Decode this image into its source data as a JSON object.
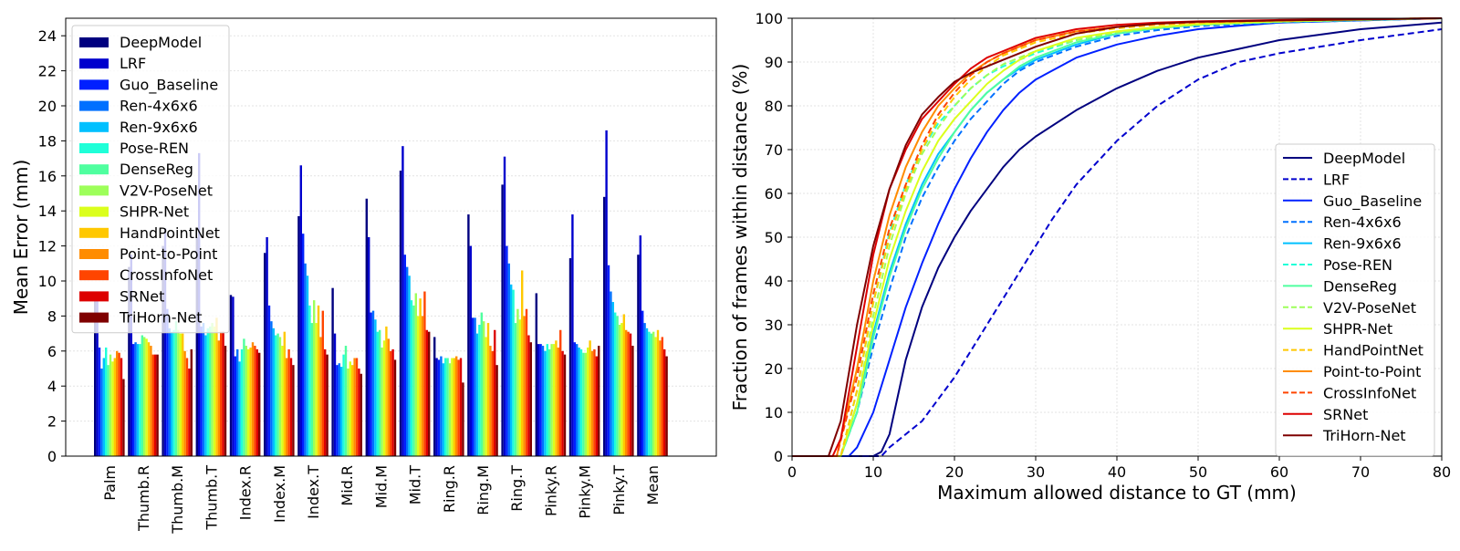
{
  "chart_data": [
    {
      "type": "bar",
      "ylabel": "Mean Error (mm)",
      "xlabel": "",
      "ylim": [
        0,
        25
      ],
      "yticks": [
        0,
        2,
        4,
        6,
        8,
        10,
        12,
        14,
        16,
        18,
        20,
        22,
        24
      ],
      "ytick_labels": [
        "0",
        "2",
        "4",
        "6",
        "8",
        "10",
        "12",
        "14",
        "16",
        "18",
        "20",
        "22",
        "24"
      ],
      "grid": true,
      "legend_position": "top-left",
      "categories": [
        "Palm",
        "Thumb.R",
        "Thumb.M",
        "Thumb.T",
        "Index.R",
        "Index.M",
        "Index.T",
        "Mid.R",
        "Mid.M",
        "Mid.T",
        "Ring.R",
        "Ring.M",
        "Ring.T",
        "Pinky.R",
        "Pinky.M",
        "Pinky.T",
        "Mean"
      ],
      "series": [
        {
          "name": "DeepModel",
          "color": "#00007f",
          "values": [
            9.0,
            10.8,
            12.0,
            12.5,
            9.2,
            11.6,
            13.7,
            9.6,
            14.7,
            16.3,
            6.8,
            13.8,
            15.5,
            9.3,
            11.3,
            14.8,
            11.5
          ]
        },
        {
          "name": "LRF",
          "color": "#0000cd",
          "values": [
            9.0,
            11.5,
            13.0,
            17.3,
            9.1,
            12.5,
            16.6,
            7.0,
            12.5,
            17.7,
            5.6,
            12.0,
            17.1,
            6.4,
            13.8,
            18.6,
            12.6
          ]
        },
        {
          "name": "Guo_Baseline",
          "color": "#0020ff",
          "values": [
            6.2,
            6.4,
            8.4,
            7.4,
            5.7,
            8.6,
            12.7,
            5.2,
            8.2,
            11.5,
            5.5,
            7.9,
            12.0,
            6.4,
            6.5,
            10.9,
            8.3
          ]
        },
        {
          "name": "Ren-4x6x6",
          "color": "#0070ff",
          "values": [
            5.0,
            6.5,
            7.3,
            7.6,
            6.1,
            7.7,
            11.0,
            5.3,
            8.3,
            10.8,
            5.7,
            7.9,
            11.0,
            6.3,
            6.4,
            9.4,
            7.6
          ]
        },
        {
          "name": "Ren-9x6x6",
          "color": "#00c0ff",
          "values": [
            5.6,
            6.4,
            7.1,
            6.9,
            5.4,
            7.3,
            10.3,
            5.1,
            7.8,
            10.3,
            5.3,
            7.0,
            9.8,
            6.0,
            6.2,
            8.8,
            7.3
          ]
        },
        {
          "name": "Pose-REN",
          "color": "#1fffd8",
          "values": [
            6.2,
            6.4,
            7.2,
            7.3,
            6.1,
            6.9,
            8.6,
            5.8,
            7.1,
            8.9,
            5.6,
            7.5,
            9.5,
            6.4,
            6.1,
            8.2,
            7.1
          ]
        },
        {
          "name": "DenseReg",
          "color": "#4fff9f",
          "values": [
            5.2,
            6.9,
            7.7,
            7.4,
            6.7,
            7.0,
            7.6,
            6.3,
            7.2,
            8.6,
            5.6,
            8.2,
            7.6,
            6.1,
            5.9,
            8.0,
            7.0
          ]
        },
        {
          "name": "V2V-PoseNet",
          "color": "#9dff5a",
          "values": [
            5.8,
            6.8,
            7.2,
            7.6,
            6.3,
            6.8,
            8.9,
            5.0,
            6.2,
            9.3,
            5.3,
            7.7,
            8.4,
            6.4,
            5.9,
            7.5,
            7.1
          ]
        },
        {
          "name": "SHPR-Net",
          "color": "#dbff1c",
          "values": [
            5.4,
            6.7,
            7.0,
            7.4,
            6.1,
            6.3,
            7.6,
            5.4,
            6.6,
            8.0,
            5.6,
            6.8,
            7.8,
            6.4,
            6.2,
            7.6,
            6.8
          ]
        },
        {
          "name": "HandPointNet",
          "color": "#ffc800",
          "values": [
            5.6,
            6.5,
            7.0,
            7.9,
            6.2,
            7.1,
            8.6,
            5.2,
            7.4,
            9.0,
            5.6,
            7.6,
            10.6,
            6.6,
            6.6,
            8.1,
            7.2
          ]
        },
        {
          "name": "Point-to-Point",
          "color": "#ff8c00",
          "values": [
            6.0,
            6.3,
            6.0,
            6.6,
            6.5,
            5.6,
            6.8,
            5.6,
            6.7,
            8.0,
            5.7,
            6.3,
            8.0,
            6.2,
            6.0,
            7.2,
            6.6
          ]
        },
        {
          "name": "CrossInfoNet",
          "color": "#ff4500",
          "values": [
            5.9,
            5.8,
            5.6,
            7.1,
            6.3,
            6.1,
            8.3,
            5.6,
            6.0,
            9.4,
            5.5,
            6.0,
            8.4,
            7.2,
            6.1,
            7.1,
            6.8
          ]
        },
        {
          "name": "SRNet",
          "color": "#dd0000",
          "values": [
            5.6,
            5.8,
            5.0,
            7.1,
            6.1,
            5.6,
            6.1,
            5.0,
            6.1,
            7.2,
            5.6,
            7.2,
            6.9,
            6.0,
            5.7,
            7.0,
            6.1
          ]
        },
        {
          "name": "TriHorn-Net",
          "color": "#7f0000",
          "values": [
            4.4,
            5.8,
            6.1,
            6.3,
            5.9,
            5.2,
            5.8,
            4.7,
            5.5,
            7.1,
            4.2,
            5.2,
            6.5,
            5.8,
            6.3,
            6.3,
            5.7
          ]
        }
      ]
    },
    {
      "type": "line",
      "xlabel": "Maximum allowed distance to GT (mm)",
      "ylabel": "Fraction of frames within distance (%)",
      "xlim": [
        0,
        80
      ],
      "ylim": [
        0,
        100
      ],
      "xticks": [
        0,
        10,
        20,
        30,
        40,
        50,
        60,
        70,
        80
      ],
      "xtick_labels": [
        "0",
        "10",
        "20",
        "30",
        "40",
        "50",
        "60",
        "70",
        "80"
      ],
      "yticks": [
        0,
        10,
        20,
        30,
        40,
        50,
        60,
        70,
        80,
        90,
        100
      ],
      "ytick_labels": [
        "0",
        "10",
        "20",
        "30",
        "40",
        "50",
        "60",
        "70",
        "80",
        "90",
        "100"
      ],
      "grid": true,
      "legend_position": "bottom-right",
      "series": [
        {
          "name": "DeepModel",
          "color": "#00007f",
          "dash": false,
          "x": [
            0,
            10,
            11,
            12,
            14,
            16,
            18,
            20,
            22,
            24,
            26,
            28,
            30,
            35,
            40,
            45,
            50,
            55,
            60,
            70,
            80
          ],
          "y": [
            0,
            0,
            1,
            5,
            22,
            34,
            43,
            50,
            56,
            61,
            66,
            70,
            73,
            79,
            84,
            88,
            91,
            93,
            95,
            97.5,
            99
          ]
        },
        {
          "name": "LRF",
          "color": "#0000cd",
          "dash": true,
          "x": [
            0,
            11,
            12,
            14,
            16,
            18,
            20,
            22,
            24,
            26,
            28,
            30,
            32,
            35,
            38,
            40,
            45,
            50,
            55,
            60,
            70,
            80
          ],
          "y": [
            0,
            0,
            2,
            5,
            8,
            13,
            18,
            24,
            30,
            36,
            42,
            48,
            54,
            62,
            68,
            72,
            80,
            86,
            90,
            92,
            95,
            97.5
          ]
        },
        {
          "name": "Guo_Baseline",
          "color": "#0020ff",
          "dash": false,
          "x": [
            0,
            7,
            8,
            10,
            12,
            14,
            16,
            18,
            20,
            22,
            24,
            26,
            28,
            30,
            35,
            40,
            45,
            50,
            55,
            60,
            70,
            80
          ],
          "y": [
            0,
            0,
            2,
            10,
            22,
            34,
            44,
            53,
            61,
            68,
            74,
            79,
            83,
            86,
            91,
            94,
            96,
            97.5,
            98.3,
            99,
            99.5,
            100
          ]
        },
        {
          "name": "Ren-4x6x6",
          "color": "#0070ff",
          "dash": true,
          "x": [
            0,
            6,
            8,
            10,
            12,
            14,
            16,
            18,
            20,
            22,
            24,
            26,
            28,
            30,
            35,
            40,
            45,
            50,
            60,
            70,
            80
          ],
          "y": [
            0,
            0,
            10,
            25,
            38,
            50,
            59,
            66,
            72,
            77,
            81,
            85,
            88,
            90,
            93.5,
            96,
            97.3,
            98.2,
            99,
            99.5,
            100
          ]
        },
        {
          "name": "Ren-9x6x6",
          "color": "#00c0ff",
          "dash": false,
          "x": [
            0,
            6,
            8,
            10,
            12,
            14,
            16,
            18,
            20,
            22,
            24,
            26,
            28,
            30,
            35,
            40,
            45,
            50,
            60,
            70,
            80
          ],
          "y": [
            0,
            0,
            12,
            28,
            42,
            53,
            62,
            69,
            74,
            79,
            83,
            86,
            88.5,
            90.5,
            94,
            96.5,
            97.7,
            98.5,
            99.2,
            99.6,
            100
          ]
        },
        {
          "name": "Pose-REN",
          "color": "#1fffd8",
          "dash": true,
          "x": [
            0,
            6,
            8,
            10,
            12,
            14,
            16,
            18,
            20,
            22,
            24,
            26,
            28,
            30,
            35,
            40,
            45,
            50,
            60,
            70,
            80
          ],
          "y": [
            0,
            0,
            15,
            35,
            51,
            62,
            70,
            76,
            80,
            84,
            87,
            89,
            90.5,
            92,
            95,
            96.7,
            97.8,
            98.5,
            99.2,
            99.6,
            100
          ]
        },
        {
          "name": "DenseReg",
          "color": "#4fff9f",
          "dash": false,
          "x": [
            0,
            6,
            8,
            10,
            12,
            14,
            16,
            18,
            20,
            22,
            24,
            26,
            28,
            30,
            35,
            40,
            45,
            50,
            60,
            70,
            80
          ],
          "y": [
            0,
            0,
            10,
            27,
            41,
            52,
            61,
            68,
            74,
            79,
            83,
            86,
            89,
            91,
            94.5,
            96.5,
            97.8,
            98.5,
            99.2,
            99.6,
            100
          ]
        },
        {
          "name": "V2V-PoseNet",
          "color": "#9dff5a",
          "dash": true,
          "x": [
            0,
            6,
            8,
            10,
            12,
            14,
            16,
            18,
            20,
            22,
            24,
            26,
            28,
            30,
            35,
            40,
            45,
            50,
            60,
            70,
            80
          ],
          "y": [
            0,
            0,
            12,
            32,
            48,
            60,
            69,
            75,
            80,
            84,
            87,
            89.5,
            91,
            92.5,
            95,
            96.8,
            97.8,
            98.5,
            99.2,
            99.6,
            100
          ]
        },
        {
          "name": "SHPR-Net",
          "color": "#dbff1c",
          "dash": false,
          "x": [
            0,
            6,
            8,
            10,
            12,
            14,
            16,
            18,
            20,
            22,
            24,
            26,
            28,
            30,
            35,
            40,
            45,
            50,
            60,
            70,
            80
          ],
          "y": [
            0,
            0,
            12,
            30,
            45,
            56,
            65,
            72,
            77,
            81,
            85,
            88,
            90.5,
            92.5,
            95.5,
            97,
            98,
            98.7,
            99.3,
            99.7,
            100
          ]
        },
        {
          "name": "HandPointNet",
          "color": "#ffc800",
          "dash": true,
          "x": [
            0,
            6,
            8,
            10,
            12,
            14,
            16,
            18,
            20,
            22,
            24,
            26,
            28,
            30,
            35,
            40,
            45,
            50,
            60,
            70,
            80
          ],
          "y": [
            0,
            0,
            15,
            35,
            50,
            61,
            70,
            77,
            82,
            86,
            89,
            91.5,
            93,
            94.5,
            96.5,
            97.7,
            98.5,
            99,
            99.5,
            99.8,
            100
          ]
        },
        {
          "name": "Point-to-Point",
          "color": "#ff8c00",
          "dash": false,
          "x": [
            0,
            5.5,
            8,
            10,
            12,
            14,
            16,
            18,
            20,
            22,
            24,
            26,
            28,
            30,
            35,
            40,
            45,
            50,
            60,
            70,
            80
          ],
          "y": [
            0,
            0,
            20,
            40,
            55,
            66,
            74,
            80,
            84,
            87.5,
            90,
            92,
            93.5,
            95,
            97,
            98,
            98.7,
            99.1,
            99.5,
            99.8,
            100
          ]
        },
        {
          "name": "CrossInfoNet",
          "color": "#ff4500",
          "dash": true,
          "x": [
            0,
            5.5,
            8,
            10,
            12,
            14,
            16,
            18,
            20,
            22,
            24,
            26,
            28,
            30,
            35,
            40,
            45,
            50,
            60,
            70,
            80
          ],
          "y": [
            0,
            0,
            18,
            37,
            52,
            62,
            71,
            78,
            83,
            87,
            90,
            92,
            93.5,
            95,
            97,
            98,
            98.7,
            99.1,
            99.5,
            99.8,
            100
          ]
        },
        {
          "name": "SRNet",
          "color": "#dd0000",
          "dash": false,
          "x": [
            0,
            5,
            6,
            8,
            10,
            12,
            14,
            16,
            18,
            20,
            22,
            24,
            26,
            28,
            30,
            35,
            40,
            45,
            50,
            60,
            70,
            80
          ],
          "y": [
            0,
            0,
            4,
            25,
            46,
            61,
            70,
            77,
            81,
            85,
            88.5,
            91,
            92.5,
            94,
            95.5,
            97.5,
            98.5,
            99,
            99.3,
            99.6,
            99.8,
            100
          ]
        },
        {
          "name": "TriHorn-Net",
          "color": "#7f0000",
          "dash": false,
          "x": [
            0,
            4.5,
            6,
            8,
            10,
            12,
            14,
            16,
            18,
            20,
            22,
            24,
            26,
            28,
            30,
            35,
            40,
            45,
            50,
            60,
            70,
            80
          ],
          "y": [
            0,
            0,
            8,
            30,
            48,
            61,
            71,
            78,
            82,
            85.5,
            87.5,
            89,
            90.5,
            92,
            93.5,
            96.5,
            98,
            98.8,
            99.2,
            99.5,
            99.7,
            100
          ]
        }
      ]
    }
  ]
}
